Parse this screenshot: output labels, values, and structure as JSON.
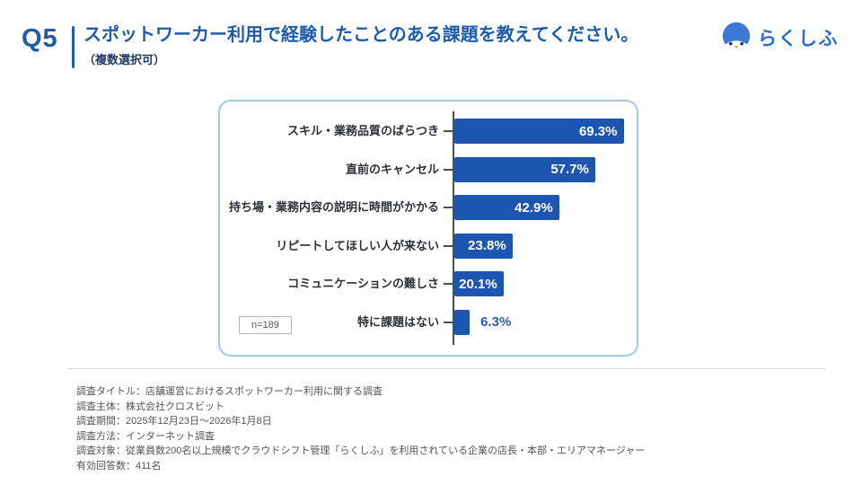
{
  "header": {
    "question_number": "Q5",
    "title": "スポットワーカー利用で経験したことのある課題を教えてください。",
    "subtitle": "（複数選択可）",
    "brand": "らくしふ"
  },
  "chart_data": {
    "type": "bar",
    "orientation": "horizontal",
    "title": "スポットワーカー利用で経験したことのある課題",
    "categories": [
      "スキル・業務品質のばらつき",
      "直前のキャンセル",
      "持ち場・業務内容の説明に時間がかかる",
      "リピートしてほしい人が来ない",
      "コミュニケーションの難しさ",
      "特に課題はない"
    ],
    "values": [
      69.3,
      57.7,
      42.9,
      23.8,
      20.1,
      6.3
    ],
    "value_labels": [
      "69.3%",
      "57.7%",
      "42.9%",
      "23.8%",
      "20.1%",
      "6.3%"
    ],
    "sample_size_label": "n=189",
    "xlim": [
      0,
      77
    ],
    "grid": false,
    "legend": "none",
    "bar_color": "#1d56b0",
    "value_label_inside_color": "#ffffff",
    "value_label_outside_color": "#2e5fad"
  },
  "footer": {
    "lines": [
      "調査タイトル：店舗運営におけるスポットワーカー利用に関する調査",
      "調査主体：株式会社クロスビット",
      "調査期間：2025年12月23日～2026年1月8日",
      "調査方法：インターネット調査",
      "調査対象：従業員数200名以上規模でクラウドシフト管理「らくしふ」を利用されている企業の店長・本部・エリアマネージャー",
      "有効回答数：411名"
    ]
  },
  "colors": {
    "accent_blue": "#1f5caa",
    "bar_blue": "#1d56b0",
    "logo_blue": "#2f6fc8",
    "panel_border": "#a6c9e9",
    "axis_gray": "#4d4d4d"
  }
}
